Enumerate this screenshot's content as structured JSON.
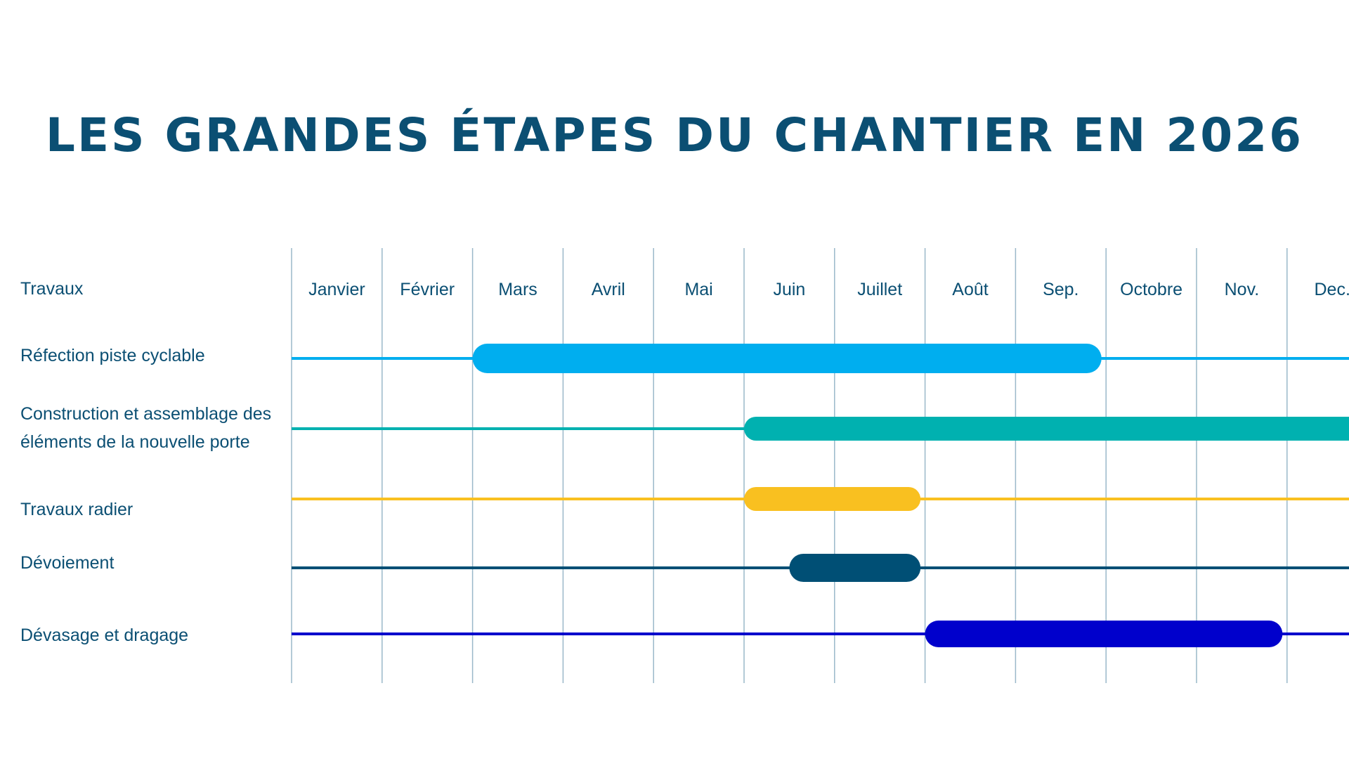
{
  "title": "Les grandes étapes du chantier en 2026",
  "chart_data": {
    "type": "gantt",
    "row_header": "Travaux",
    "year": 2026,
    "months": [
      "Janvier",
      "Février",
      "Mars",
      "Avril",
      "Mai",
      "Juin",
      "Juillet",
      "Août",
      "Sep.",
      "Octobre",
      "Nov.",
      "Dec."
    ],
    "tasks": [
      {
        "name": "Réfection piste cyclable",
        "start_month": 3,
        "end_month": 9.95,
        "color": "#00aeef"
      },
      {
        "name": "Construction et assemblage des éléments de la nouvelle porte",
        "start_month": 6,
        "end_month": 12.9,
        "color": "#00b1b0"
      },
      {
        "name": "Travaux radier",
        "start_month": 6,
        "end_month": 7.95,
        "color": "#f9c020"
      },
      {
        "name": "Dévoiement",
        "start_month": 6.5,
        "end_month": 7.95,
        "color": "#004f75"
      },
      {
        "name": "Dévasage et dragage",
        "start_month": 8,
        "end_month": 11.95,
        "color": "#0000cc"
      }
    ]
  }
}
